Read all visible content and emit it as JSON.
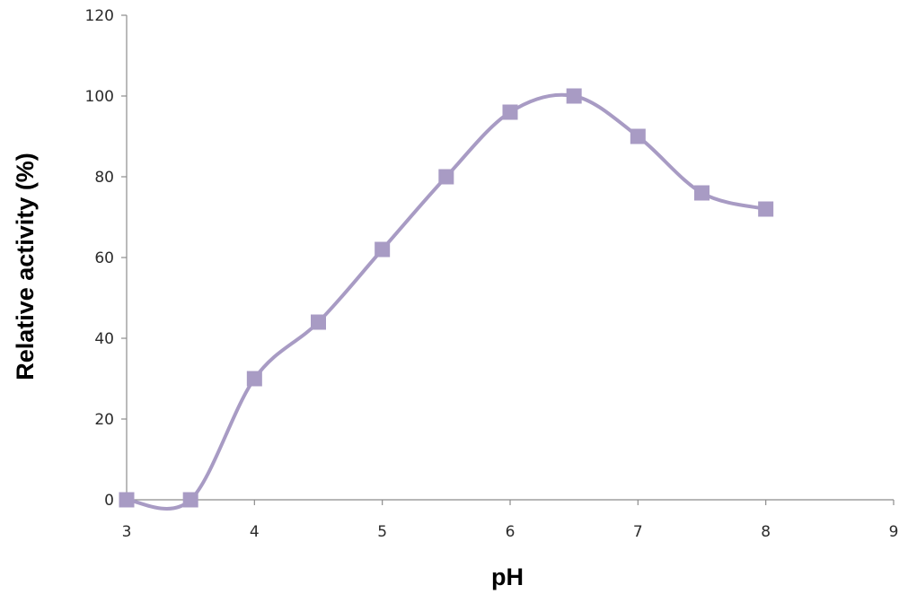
{
  "chart_data": {
    "type": "line",
    "title": "",
    "xlabel": "pH",
    "ylabel": "Relative activity (%)",
    "xlim": [
      3,
      9
    ],
    "ylim": [
      0,
      120
    ],
    "xticks": [
      3,
      4,
      5,
      6,
      7,
      8,
      9
    ],
    "yticks": [
      0,
      20,
      40,
      60,
      80,
      100,
      120
    ],
    "grid": false,
    "legend": "none",
    "smooth": true,
    "marker": "square",
    "series": [
      {
        "x": [
          3,
          3.5,
          4,
          4.5,
          5,
          5.5,
          6,
          6.5,
          7,
          7.5,
          8
        ],
        "y": [
          0,
          0,
          30,
          44,
          62,
          80,
          96,
          100,
          90,
          76,
          72
        ]
      }
    ],
    "colors": {
      "series": "#a89bc4",
      "marker": "#a89bc4",
      "axis": "#8c8c8c"
    }
  }
}
